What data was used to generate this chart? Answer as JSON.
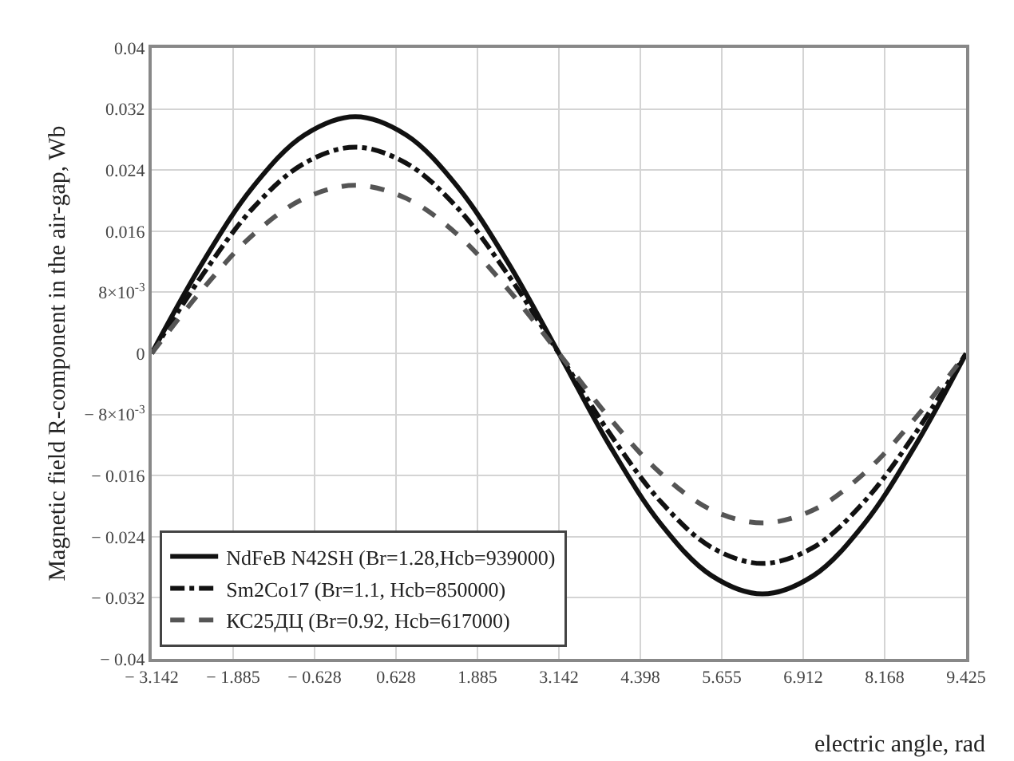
{
  "chart_data": {
    "type": "line",
    "xlabel": "electric angle, rad",
    "ylabel": "Magnetic field R-component in the air-gap, Wb",
    "x": [
      -3.142,
      -2.356,
      -1.571,
      -0.785,
      0,
      0.785,
      1.571,
      2.356,
      3.142,
      3.927,
      4.712,
      5.498,
      6.283,
      7.069,
      7.854,
      8.639,
      9.425
    ],
    "series": [
      {
        "name": "NdFeB N42SH (Br=1.28,Hcb=939000)",
        "color": "#111111",
        "line_style": "solid",
        "values": [
          0,
          0.0119,
          0.0219,
          0.0286,
          0.031,
          0.0286,
          0.0219,
          0.0119,
          0,
          -0.0121,
          -0.0223,
          -0.0291,
          -0.0315,
          -0.0291,
          -0.0223,
          -0.0121,
          0
        ]
      },
      {
        "name": "Sm2Co17 (Br=1.1, Hcb=850000)",
        "color": "#111111",
        "line_style": "dashdot",
        "values": [
          0,
          0.0103,
          0.0191,
          0.0249,
          0.027,
          0.0249,
          0.0191,
          0.0103,
          0,
          -0.0105,
          -0.0194,
          -0.0254,
          -0.0275,
          -0.0254,
          -0.0194,
          -0.0105,
          0
        ]
      },
      {
        "name": "КС25ДЦ (Br=0.92, Hcb=617000)",
        "color": "#555555",
        "line_style": "dashed",
        "values": [
          0,
          0.0084,
          0.0156,
          0.0203,
          0.022,
          0.0203,
          0.0156,
          0.0084,
          0,
          -0.0085,
          -0.0157,
          -0.0205,
          -0.0222,
          -0.0205,
          -0.0157,
          -0.0085,
          0
        ]
      }
    ],
    "xlim": [
      -3.142,
      9.425
    ],
    "xticks": [
      {
        "value": -3.142,
        "label": "− 3.142"
      },
      {
        "value": -1.885,
        "label": "− 1.885"
      },
      {
        "value": -0.628,
        "label": "− 0.628"
      },
      0.628,
      1.885,
      3.142,
      4.398,
      5.655,
      6.912,
      8.168,
      9.425
    ],
    "ylim": [
      -0.04,
      0.04
    ],
    "yticks": [
      {
        "value": -0.04,
        "label": "− 0.04"
      },
      {
        "value": -0.032,
        "label": "− 0.032"
      },
      {
        "value": -0.024,
        "label": "− 0.024"
      },
      {
        "value": -0.016,
        "label": "− 0.016"
      },
      {
        "value": -0.008,
        "label": "− 8×10$^{-3}$"
      },
      0,
      {
        "value": 0.008,
        "label": "8×10$^{-3}$"
      },
      0.016,
      0.024,
      0.032,
      0.04
    ],
    "grid": true,
    "legend": "bottom left",
    "marker": "none"
  }
}
